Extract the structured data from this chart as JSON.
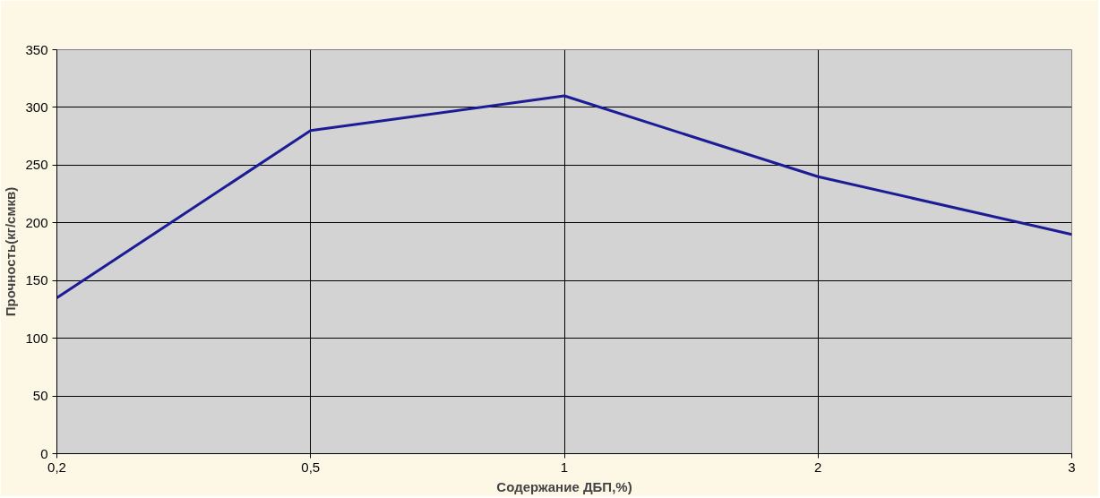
{
  "chart_data": {
    "type": "line",
    "xlabel": "Содержание ДБП,%)",
    "ylabel": "Прочность(кг/смкв)",
    "categories": [
      "0,2",
      "0,5",
      "1",
      "2",
      "3"
    ],
    "series": [
      {
        "color": "#1c1c96",
        "values": [
          135,
          280,
          310,
          240,
          190
        ]
      }
    ],
    "ylim": [
      0,
      350
    ],
    "yticks": [
      0,
      50,
      100,
      150,
      200,
      250,
      300,
      350
    ],
    "grid": true,
    "marker": "none",
    "line_style": "solid"
  }
}
